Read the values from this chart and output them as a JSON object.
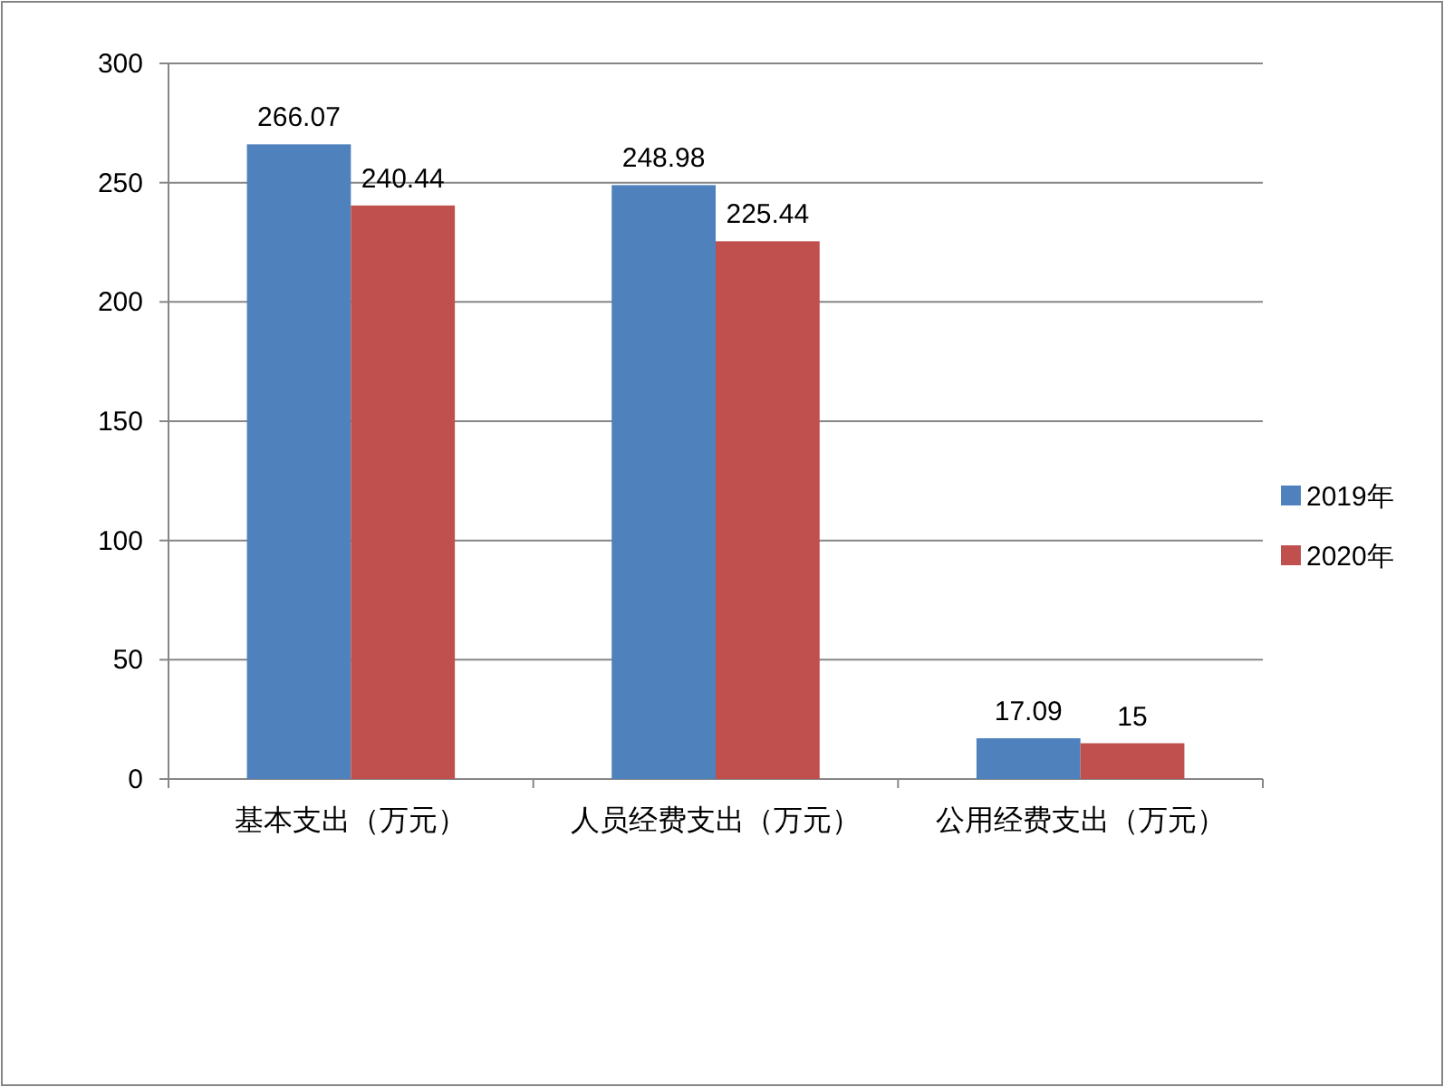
{
  "chart_data": {
    "type": "bar",
    "categories": [
      "基本支出（万元）",
      "人员经费支出（万元）",
      "公用经费支出（万元）"
    ],
    "series": [
      {
        "name": "2019年",
        "color": "#4f81bd",
        "values": [
          266.07,
          248.98,
          17.09
        ]
      },
      {
        "name": "2020年",
        "color": "#c0504d",
        "values": [
          240.44,
          225.44,
          15
        ]
      }
    ],
    "ylim": [
      0,
      300
    ],
    "yticks": [
      0,
      50,
      100,
      150,
      200,
      250,
      300
    ],
    "grid": "y",
    "legend": "right",
    "data_labels": true
  }
}
